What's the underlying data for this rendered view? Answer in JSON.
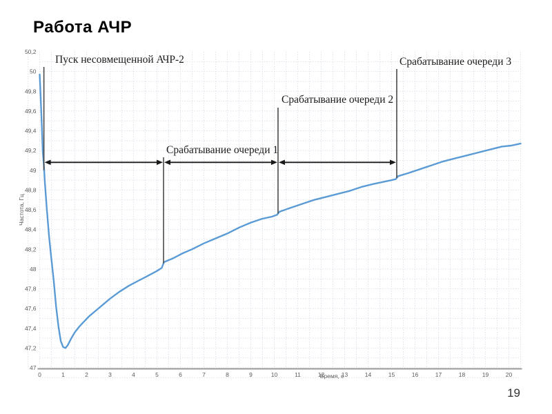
{
  "slide": {
    "title": "Работа АЧР",
    "page_number": "19"
  },
  "chart_data": {
    "type": "line",
    "title": "",
    "xlabel": "Время, с",
    "ylabel": "Частота, Гц",
    "xlim": [
      0,
      20.5
    ],
    "ylim": [
      47,
      50.2
    ],
    "grid": true,
    "x_ticks": [
      [
        0,
        "0"
      ],
      [
        1,
        "1"
      ],
      [
        2,
        "2"
      ],
      [
        3,
        "3"
      ],
      [
        4,
        "4"
      ],
      [
        5,
        "5"
      ],
      [
        6,
        "6"
      ],
      [
        7,
        "7"
      ],
      [
        8,
        "8"
      ],
      [
        9,
        "9"
      ],
      [
        10,
        "10"
      ],
      [
        11,
        "11"
      ],
      [
        12,
        "12"
      ],
      [
        13,
        "13"
      ],
      [
        14,
        "14"
      ],
      [
        15,
        "15"
      ],
      [
        16,
        "16"
      ],
      [
        17,
        "17"
      ],
      [
        18,
        "18"
      ],
      [
        19,
        "19"
      ],
      [
        20,
        "20"
      ]
    ],
    "y_ticks": [
      [
        50.2,
        "50,2"
      ],
      [
        50,
        "50"
      ],
      [
        49.8,
        "49,8"
      ],
      [
        49.6,
        "49,6"
      ],
      [
        49.4,
        "49,4"
      ],
      [
        49.2,
        "49,2"
      ],
      [
        49,
        "49"
      ],
      [
        48.8,
        "48,8"
      ],
      [
        48.6,
        "48,6"
      ],
      [
        48.4,
        "48,4"
      ],
      [
        48.2,
        "48,2"
      ],
      [
        48,
        "48"
      ],
      [
        47.8,
        "47,8"
      ],
      [
        47.6,
        "47,6"
      ],
      [
        47.4,
        "47,4"
      ],
      [
        47.2,
        "47,2"
      ],
      [
        47,
        "47"
      ]
    ],
    "series": [
      {
        "name": "Частота",
        "color": "#5b9bd5",
        "points": [
          [
            0,
            49.97
          ],
          [
            0.04,
            49.75
          ],
          [
            0.09,
            49.45
          ],
          [
            0.13,
            49.2
          ],
          [
            0.18,
            49.05
          ],
          [
            0.22,
            48.88
          ],
          [
            0.3,
            48.62
          ],
          [
            0.4,
            48.33
          ],
          [
            0.5,
            48.1
          ],
          [
            0.6,
            47.88
          ],
          [
            0.7,
            47.62
          ],
          [
            0.8,
            47.42
          ],
          [
            0.9,
            47.27
          ],
          [
            1.0,
            47.21
          ],
          [
            1.1,
            47.2
          ],
          [
            1.2,
            47.23
          ],
          [
            1.35,
            47.3
          ],
          [
            1.5,
            47.36
          ],
          [
            1.7,
            47.42
          ],
          [
            1.9,
            47.47
          ],
          [
            2.1,
            47.52
          ],
          [
            2.4,
            47.58
          ],
          [
            2.7,
            47.64
          ],
          [
            3.0,
            47.7
          ],
          [
            3.4,
            47.77
          ],
          [
            3.8,
            47.83
          ],
          [
            4.2,
            47.88
          ],
          [
            4.6,
            47.93
          ],
          [
            5.0,
            47.98
          ],
          [
            5.2,
            48.01
          ],
          [
            5.3,
            48.07
          ],
          [
            5.7,
            48.11
          ],
          [
            6.1,
            48.16
          ],
          [
            6.5,
            48.2
          ],
          [
            7.0,
            48.26
          ],
          [
            7.5,
            48.31
          ],
          [
            8.0,
            48.36
          ],
          [
            8.5,
            48.42
          ],
          [
            9.0,
            48.47
          ],
          [
            9.5,
            48.51
          ],
          [
            9.9,
            48.53
          ],
          [
            10.12,
            48.55
          ],
          [
            10.22,
            48.58
          ],
          [
            10.7,
            48.62
          ],
          [
            11.2,
            48.66
          ],
          [
            11.7,
            48.7
          ],
          [
            12.2,
            48.73
          ],
          [
            12.7,
            48.76
          ],
          [
            13.2,
            48.79
          ],
          [
            13.7,
            48.83
          ],
          [
            14.2,
            48.86
          ],
          [
            14.6,
            48.88
          ],
          [
            15.0,
            48.9
          ],
          [
            15.18,
            48.91
          ],
          [
            15.28,
            48.94
          ],
          [
            15.7,
            48.97
          ],
          [
            16.2,
            49.01
          ],
          [
            16.7,
            49.05
          ],
          [
            17.2,
            49.09
          ],
          [
            17.7,
            49.12
          ],
          [
            18.2,
            49.15
          ],
          [
            18.7,
            49.18
          ],
          [
            19.2,
            49.21
          ],
          [
            19.7,
            49.24
          ],
          [
            20.1,
            49.25
          ],
          [
            20.5,
            49.27
          ]
        ]
      }
    ],
    "annotations": [
      {
        "label": "Пуск несовмещенной АЧР-2",
        "t": 0.18
      },
      {
        "label": "Срабатывание очереди 1",
        "t": 5.28
      },
      {
        "label": "Срабатывание очереди 2",
        "t": 10.16
      },
      {
        "label": "Срабатывание очереди 3",
        "t": 15.22
      }
    ],
    "interval_arrows": [
      {
        "from_t": 0.18,
        "to_t": 5.28,
        "at_hz": 49.08
      },
      {
        "from_t": 5.28,
        "to_t": 10.16,
        "at_hz": 49.08
      },
      {
        "from_t": 10.16,
        "to_t": 15.22,
        "at_hz": 49.08
      }
    ]
  }
}
